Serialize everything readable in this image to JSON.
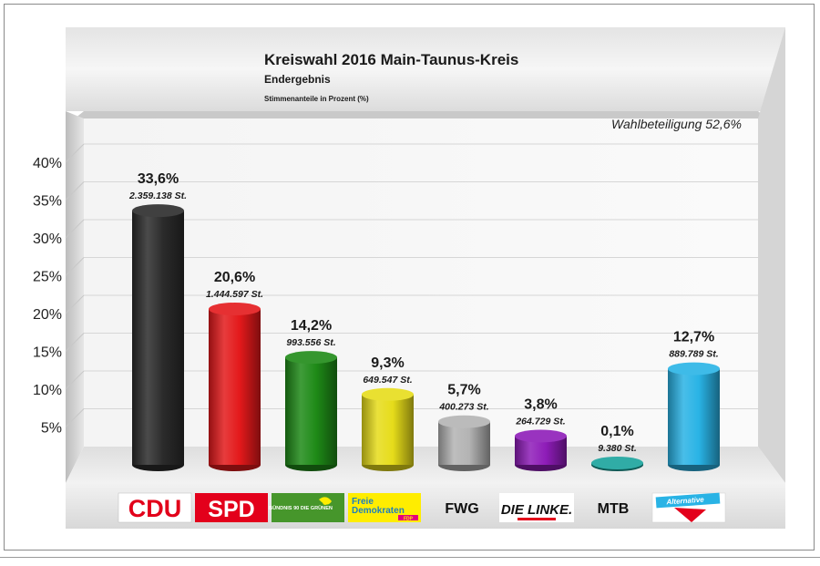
{
  "chart_data": {
    "type": "bar",
    "title": "Kreiswahl 2016 Main-Taunus-Kreis",
    "subtitle": "Endergebnis",
    "note": "Stimmenanteile in Prozent (%)",
    "turnout": "Wahlbeteiligung 52,6%",
    "ylim": [
      0,
      40
    ],
    "yticks": [
      "5%",
      "10%",
      "15%",
      "20%",
      "25%",
      "30%",
      "35%",
      "40%"
    ],
    "grid": true,
    "categories": [
      "CDU",
      "SPD",
      "BÜNDNIS 90 DIE GRÜNEN",
      "Freie Demokraten FDP",
      "FWG",
      "DIE LINKE.",
      "MTB",
      "Alternative"
    ],
    "values": [
      33.6,
      20.6,
      14.2,
      9.3,
      5.7,
      3.8,
      0.1,
      12.7
    ],
    "value_labels": [
      "33,6%",
      "20,6%",
      "14,2%",
      "9,3%",
      "5,7%",
      "3,8%",
      "0,1%",
      "12,7%"
    ],
    "vote_labels": [
      "2.359.138 St.",
      "1.444.597 St.",
      "993.556 St.",
      "649.547 St.",
      "400.273 St.",
      "264.729 St.",
      "9.380 St.",
      "889.789 St."
    ],
    "colors": [
      "#2b2b2b",
      "#e3191b",
      "#1e8a17",
      "#e6dc1a",
      "#b3b3b3",
      "#8e1cb8",
      "#19a39c",
      "#29b3e5"
    ]
  },
  "logos": {
    "cdu": "CDU",
    "spd": "SPD",
    "gruene": "BÜNDNIS 90 DIE GRÜNEN",
    "fdp_line1": "Freie",
    "fdp_line2": "Demokraten",
    "fdp_tag": "FDP",
    "fwg": "FWG",
    "linke": "DIE LINKE.",
    "mtb": "MTB",
    "afd": "Alternative"
  }
}
